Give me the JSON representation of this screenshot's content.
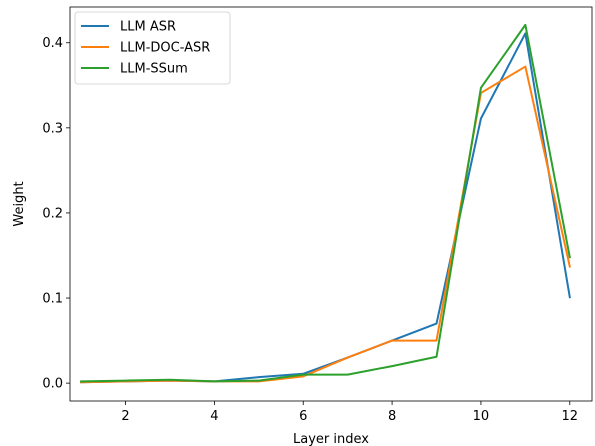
{
  "chart_data": {
    "type": "line",
    "xlabel": "Layer index",
    "ylabel": "Weight",
    "xlim": [
      0.75,
      12.5
    ],
    "ylim": [
      -0.021,
      0.442
    ],
    "x_ticks": [
      2,
      4,
      6,
      8,
      10,
      12
    ],
    "y_ticks": [
      0.0,
      0.1,
      0.2,
      0.3,
      0.4
    ],
    "y_tick_labels": [
      "0.0",
      "0.1",
      "0.2",
      "0.3",
      "0.4"
    ],
    "grid": false,
    "legend_position": "top-left",
    "x": [
      1,
      2,
      3,
      4,
      5,
      6,
      7,
      8,
      9,
      10,
      11,
      12
    ],
    "series": [
      {
        "name": "LLM ASR",
        "color": "#1f77b4",
        "values": [
          0.001,
          0.002,
          0.003,
          0.002,
          0.007,
          0.011,
          0.03,
          0.05,
          0.07,
          0.311,
          0.411,
          0.101
        ]
      },
      {
        "name": "LLM-DOC-ASR",
        "color": "#ff7f0e",
        "values": [
          0.001,
          0.002,
          0.003,
          0.002,
          0.002,
          0.008,
          0.03,
          0.05,
          0.05,
          0.341,
          0.372,
          0.137
        ]
      },
      {
        "name": "LLM-SSum",
        "color": "#2ca02c",
        "values": [
          0.002,
          0.003,
          0.004,
          0.002,
          0.003,
          0.01,
          0.01,
          0.02,
          0.031,
          0.347,
          0.421,
          0.148
        ]
      }
    ]
  }
}
